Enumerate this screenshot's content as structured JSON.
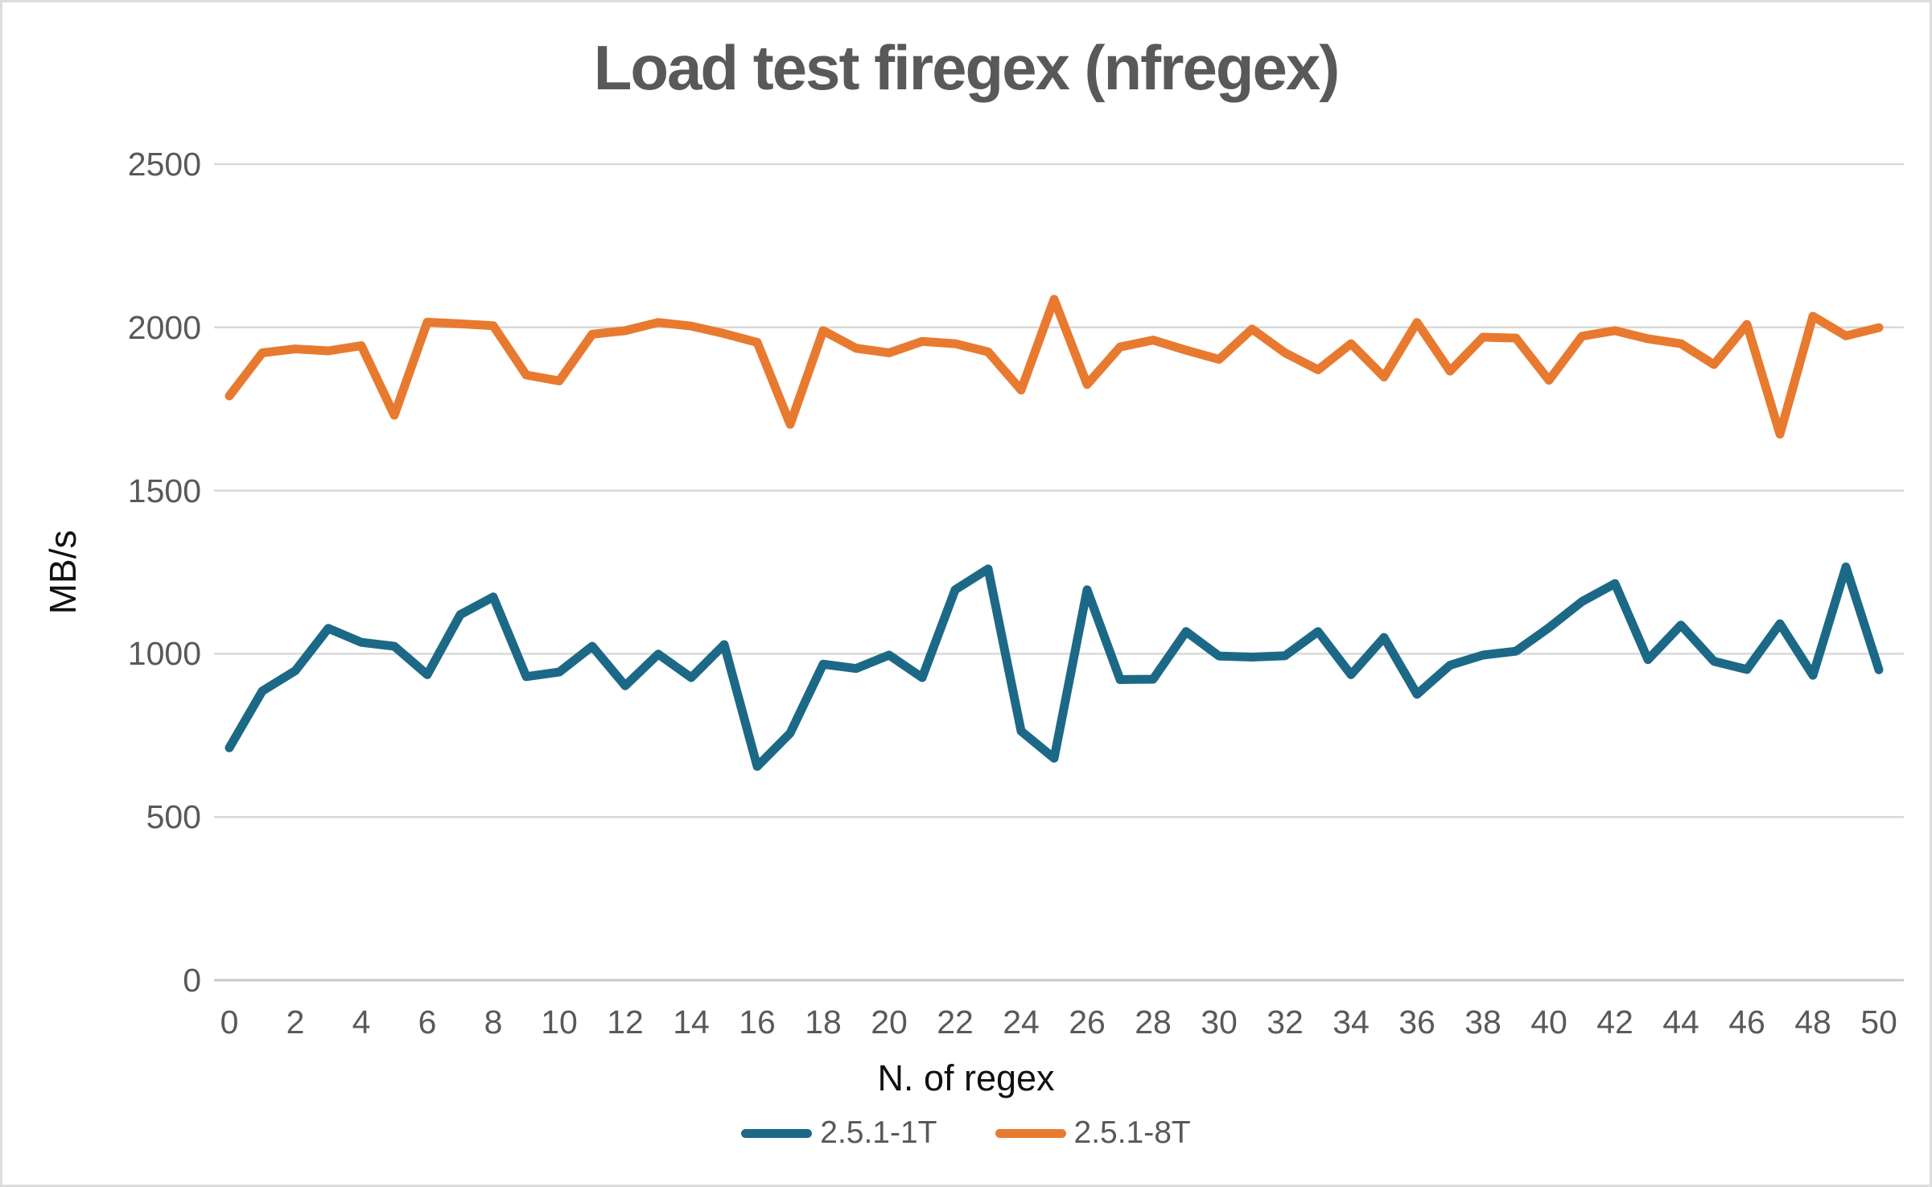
{
  "title": "Load test firegex (nfregex)",
  "chart_data": {
    "type": "line",
    "title": "Load test firegex (nfregex)",
    "xlabel": "N. of regex",
    "ylabel": "MB/s",
    "ylim": [
      0,
      2500
    ],
    "yticks": [
      0,
      500,
      1000,
      1500,
      2000,
      2500
    ],
    "xticks": [
      0,
      2,
      4,
      6,
      8,
      10,
      12,
      14,
      16,
      18,
      20,
      22,
      24,
      26,
      28,
      30,
      32,
      34,
      36,
      38,
      40,
      42,
      44,
      46,
      48,
      50
    ],
    "grid": "horizontal",
    "gridline_color": "#d9d9d9",
    "axisline_color": "#c9c9c9",
    "legend_position": "bottom",
    "x": [
      0,
      1,
      2,
      3,
      4,
      5,
      6,
      7,
      8,
      9,
      10,
      11,
      12,
      13,
      14,
      15,
      16,
      17,
      18,
      19,
      20,
      21,
      22,
      23,
      24,
      25,
      26,
      27,
      28,
      29,
      30,
      31,
      32,
      33,
      34,
      35,
      36,
      37,
      38,
      39,
      40,
      41,
      42,
      43,
      44,
      45,
      46,
      47,
      48,
      49,
      50
    ],
    "series": [
      {
        "name": "2.5.1-1T",
        "color": "#1c6987",
        "values": [
          712,
          886,
          948,
          1078,
          1035,
          1023,
          936,
          1120,
          1174,
          930,
          944,
          1023,
          902,
          999,
          927,
          1028,
          655,
          757,
          968,
          955,
          996,
          927,
          1196,
          1260,
          763,
          680,
          1196,
          921,
          922,
          1068,
          993,
          990,
          994,
          1068,
          936,
          1050,
          876,
          965,
          996,
          1008,
          1080,
          1160,
          1215,
          982,
          1088,
          977,
          952,
          1092,
          934,
          1266,
          951
        ]
      },
      {
        "name": "2.5.1-8T",
        "color": "#e87a30",
        "values": [
          1790,
          1922,
          1934,
          1928,
          1944,
          1731,
          2016,
          2011,
          2005,
          1854,
          1836,
          1979,
          1990,
          2015,
          2004,
          1981,
          1954,
          1703,
          1990,
          1936,
          1922,
          1957,
          1950,
          1925,
          1808,
          2086,
          1825,
          1940,
          1961,
          1930,
          1902,
          1995,
          1922,
          1870,
          1950,
          1848,
          2015,
          1866,
          1970,
          1967,
          1838,
          1973,
          1990,
          1965,
          1950,
          1886,
          2009,
          1673,
          2034,
          1974,
          1999
        ]
      }
    ],
    "text_colors": {
      "title": "#595959",
      "tick_labels": "#595959",
      "axis_titles": "#111111",
      "legend_labels": "#595959"
    },
    "background": "#ffffff",
    "border_color": "#dcdcdc"
  }
}
